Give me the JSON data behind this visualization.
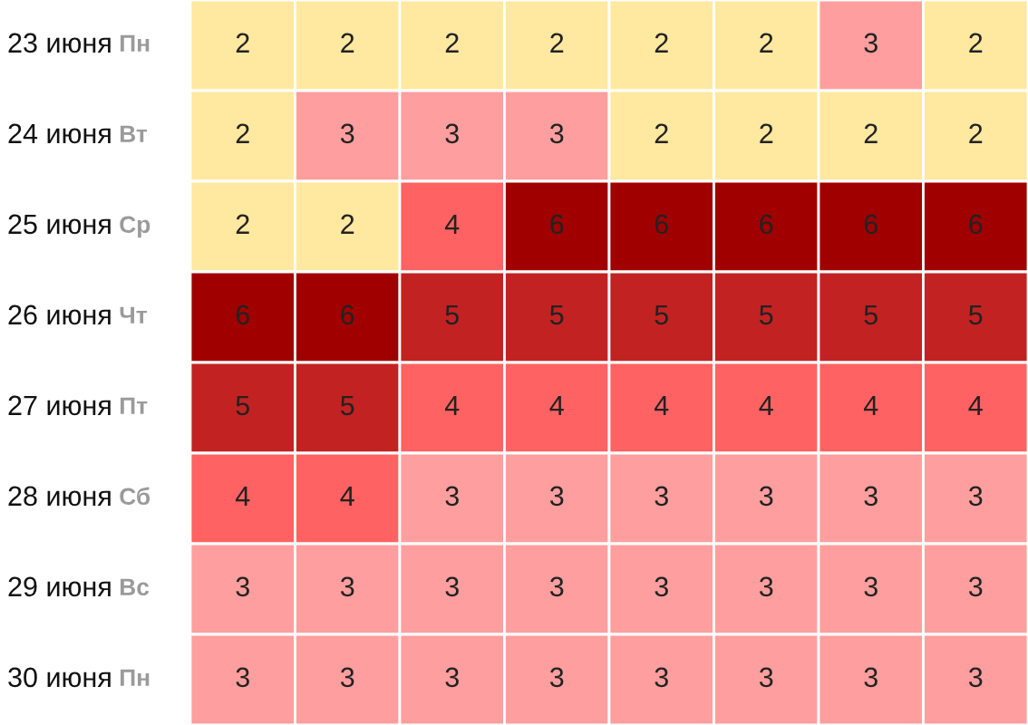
{
  "chart_data": {
    "type": "heatmap",
    "categories": [
      null,
      null,
      null,
      null,
      null,
      null,
      null,
      null
    ],
    "y_categories": [
      "23 июня Пн",
      "24 июня Вт",
      "25 июня Ср",
      "26 июня Чт",
      "27 июня Пт",
      "28 июня Сб",
      "29 июня Вс",
      "30 июня Пн"
    ],
    "cells": [
      [
        2,
        2,
        2,
        2,
        2,
        2,
        3,
        2
      ],
      [
        2,
        3,
        3,
        3,
        2,
        2,
        2,
        2
      ],
      [
        2,
        2,
        4,
        6,
        6,
        6,
        6,
        6
      ],
      [
        6,
        6,
        5,
        5,
        5,
        5,
        5,
        5
      ],
      [
        5,
        5,
        4,
        4,
        4,
        4,
        4,
        4
      ],
      [
        4,
        4,
        3,
        3,
        3,
        3,
        3,
        3
      ],
      [
        3,
        3,
        3,
        3,
        3,
        3,
        3,
        3
      ],
      [
        3,
        3,
        3,
        3,
        3,
        3,
        3,
        3
      ]
    ],
    "colors": [
      "#ffe8a0",
      "#ff9e9e",
      "#ff6262",
      "#c22222",
      "#a00000"
    ],
    "data_labels": true
  }
}
